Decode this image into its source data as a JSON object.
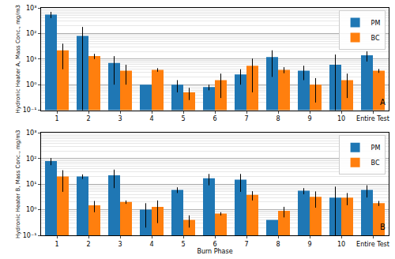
{
  "chart_data": [
    {
      "type": "bar",
      "ylabel": "Hydronic Heater A, Mass Conc., mg/m3",
      "categories": [
        "1",
        "2",
        "3",
        "4",
        "5",
        "6",
        "7",
        "8",
        "9",
        "10",
        "Entire Test"
      ],
      "series": [
        {
          "name": "PM",
          "color": "#1f77b4",
          "values": [
            550,
            80,
            7,
            1.0,
            1.0,
            0.8,
            2.5,
            12,
            3.5,
            6,
            14
          ],
          "errors": [
            150,
            100,
            6,
            0,
            0.5,
            0.2,
            1.5,
            10,
            2,
            9,
            6
          ]
        },
        {
          "name": "BC",
          "color": "#ff7f0e",
          "values": [
            22,
            13,
            3.5,
            3.8,
            0.5,
            1.5,
            5.5,
            3.8,
            1.0,
            1.5,
            3.5
          ],
          "errors": [
            18,
            3,
            2.5,
            0.6,
            0.25,
            1.2,
            5,
            1,
            0.8,
            1.2,
            0.6
          ]
        }
      ],
      "log": "y",
      "ylim": [
        0.1,
        1000
      ],
      "yticks": [
        {
          "value": 0.1,
          "label": "10⁻¹"
        },
        {
          "value": 1,
          "label": "10⁰"
        },
        {
          "value": 10,
          "label": "10¹"
        },
        {
          "value": 100,
          "label": "10²"
        },
        {
          "value": 1000,
          "label": "10³"
        }
      ],
      "grid": true,
      "legend": "upper right",
      "annotations": [
        {
          "text": "A"
        }
      ]
    },
    {
      "type": "bar",
      "ylabel": "Hydronic Heater B, Mass Conc., mg/m3",
      "xlabel": "Burn Phase",
      "categories": [
        "1",
        "2",
        "3",
        "4",
        "5",
        "6",
        "7",
        "8",
        "9",
        "10",
        "Entire Test"
      ],
      "series": [
        {
          "name": "PM",
          "color": "#1f77b4",
          "values": [
            80,
            20,
            22,
            1.0,
            6,
            17,
            15,
            0.4,
            5.5,
            3,
            6
          ],
          "errors": [
            25,
            4,
            15,
            0.8,
            1.5,
            8,
            10,
            0,
            1.5,
            5,
            3
          ]
        },
        {
          "name": "BC",
          "color": "#ff7f0e",
          "values": [
            20,
            1.5,
            2,
            1.3,
            0.4,
            0.7,
            3.8,
            0.9,
            3.2,
            3.0,
            1.8
          ],
          "errors": [
            15,
            0.7,
            0.3,
            1,
            0.2,
            0.1,
            1.5,
            0.4,
            2,
            1.5,
            0.4
          ]
        }
      ],
      "log": "y",
      "ylim": [
        0.1,
        1000
      ],
      "yticks": [
        {
          "value": 0.1,
          "label": "10⁻¹"
        },
        {
          "value": 1,
          "label": "10⁰"
        },
        {
          "value": 10,
          "label": "10¹"
        },
        {
          "value": 100,
          "label": "10²"
        },
        {
          "value": 1000,
          "label": "10³"
        }
      ],
      "grid": true,
      "legend": "upper right",
      "annotations": [
        {
          "text": "B"
        }
      ]
    }
  ]
}
